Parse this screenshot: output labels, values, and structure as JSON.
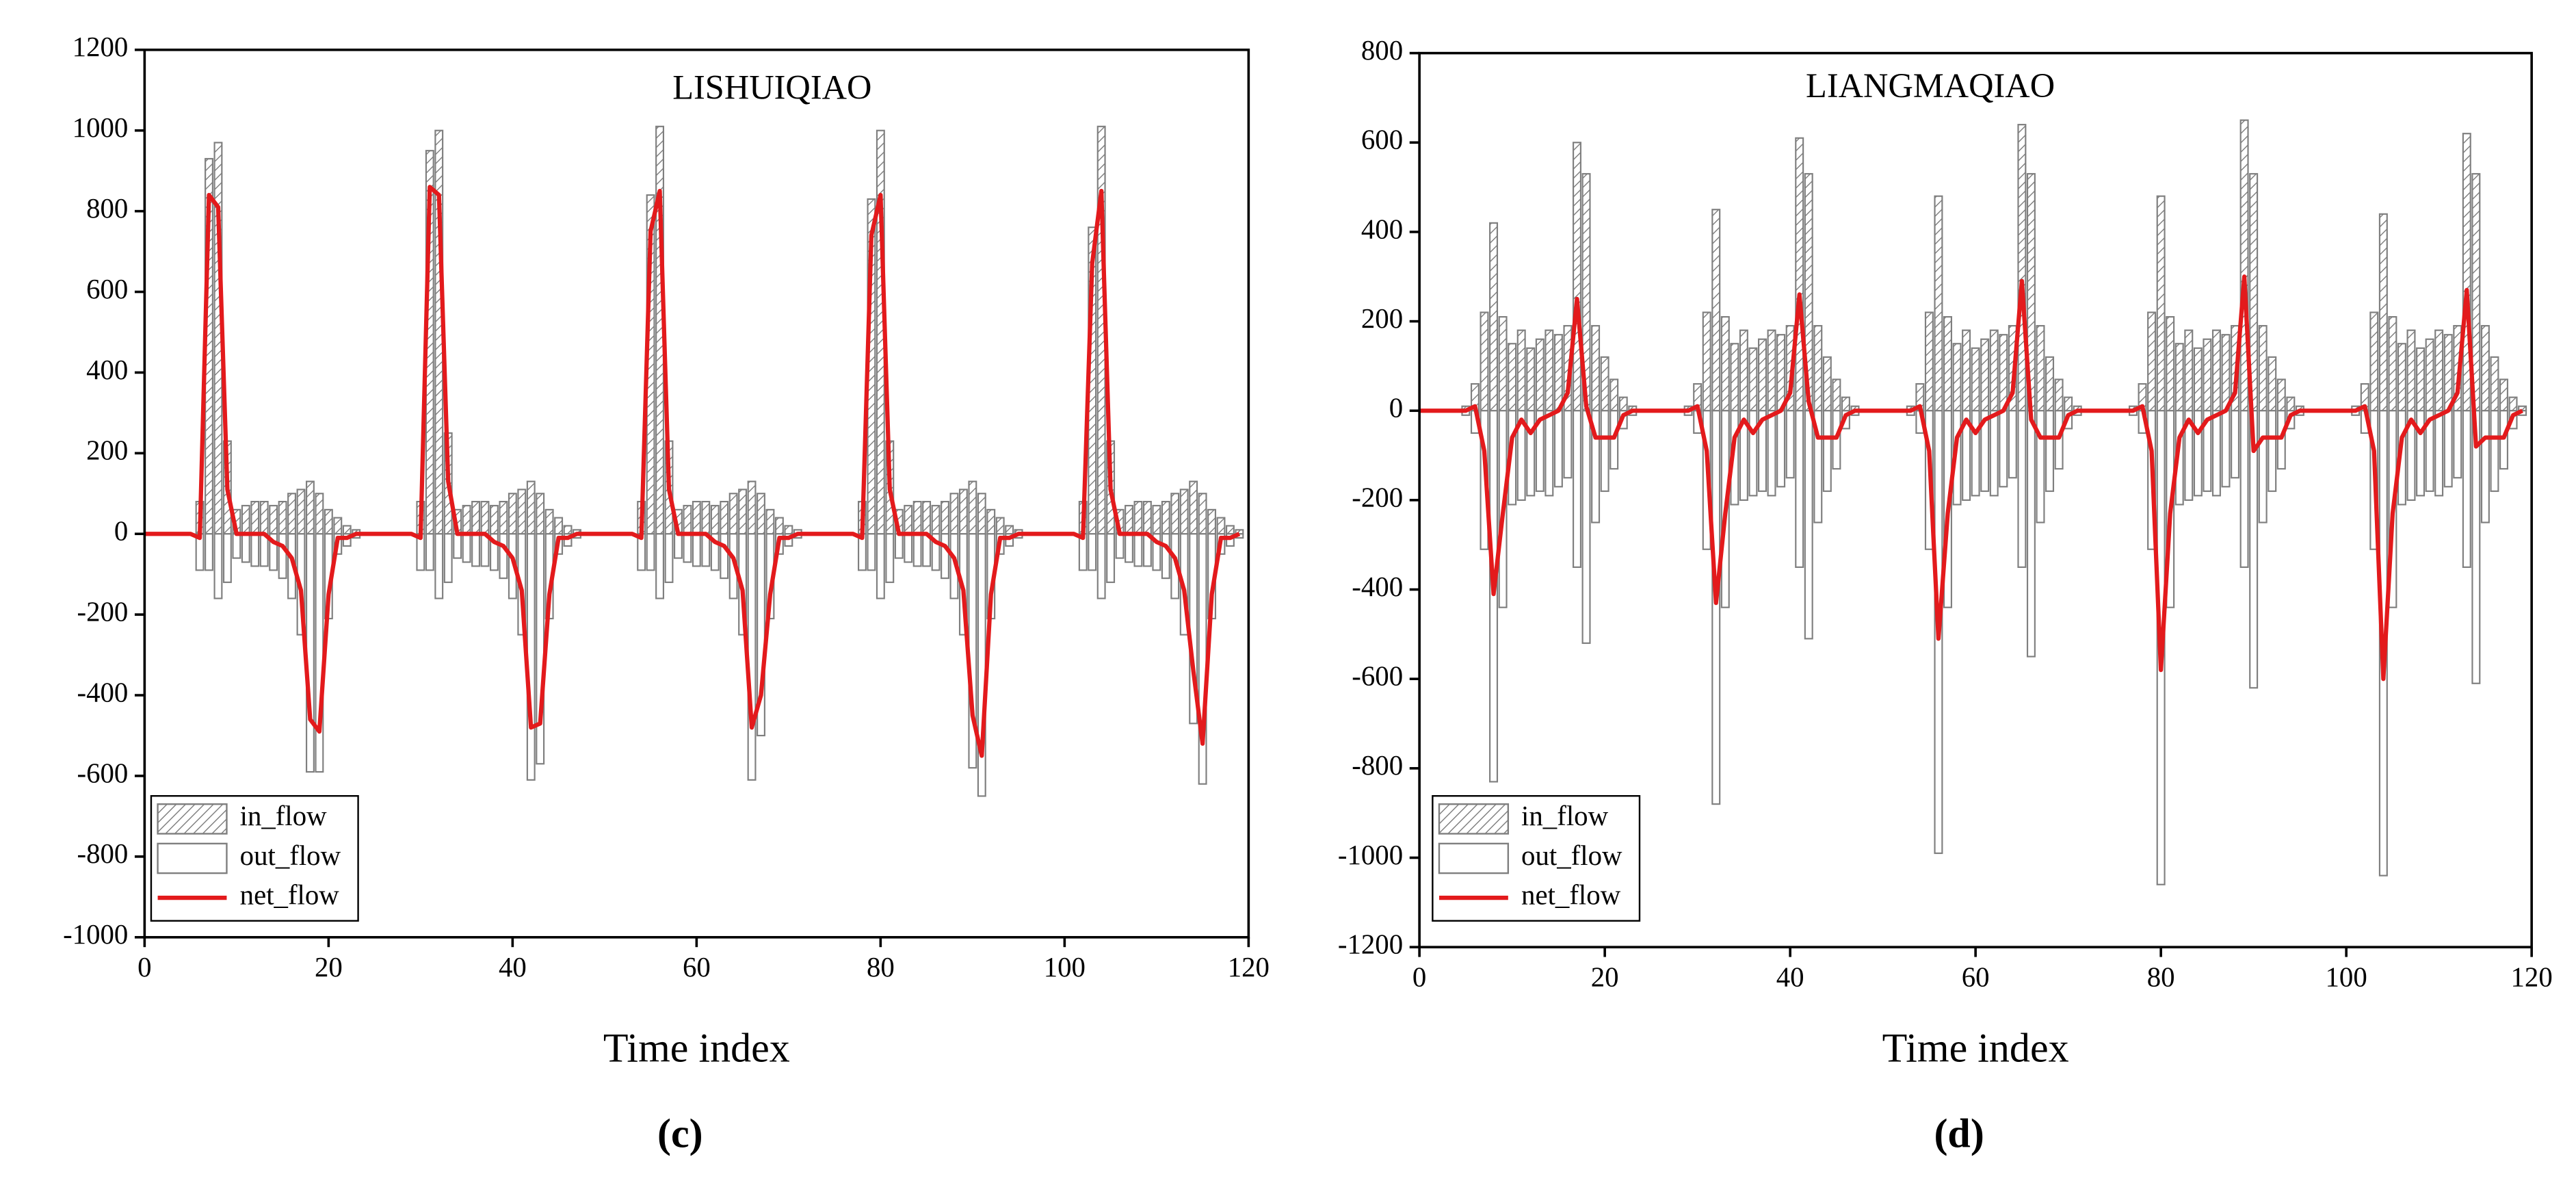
{
  "chart_data": [
    {
      "type": "bar",
      "title": "LISHUIQIAO",
      "label": "(c)",
      "x_label": "Time index",
      "xlim": [
        0,
        120
      ],
      "xticks": [
        0,
        20,
        40,
        60,
        80,
        100,
        120
      ],
      "ylim": [
        -1000,
        1200
      ],
      "yticks": [
        -1000,
        -800,
        -600,
        -400,
        -200,
        0,
        200,
        400,
        600,
        800,
        1000,
        1200
      ],
      "legend": "lower left",
      "series": [
        {
          "name": "in_flow",
          "type": "bar",
          "color": "#7f7f7f",
          "hatch": true,
          "values": [
            0,
            0,
            0,
            0,
            0,
            0,
            80,
            930,
            970,
            230,
            60,
            70,
            80,
            80,
            70,
            80,
            100,
            110,
            130,
            100,
            60,
            40,
            20,
            10,
            0,
            0,
            0,
            0,
            0,
            0,
            80,
            950,
            1000,
            250,
            60,
            70,
            80,
            80,
            70,
            80,
            100,
            110,
            130,
            100,
            60,
            40,
            20,
            10,
            0,
            0,
            0,
            0,
            0,
            0,
            80,
            840,
            1010,
            230,
            60,
            70,
            80,
            80,
            70,
            80,
            100,
            110,
            130,
            100,
            60,
            40,
            20,
            10,
            0,
            0,
            0,
            0,
            0,
            0,
            80,
            830,
            1000,
            230,
            60,
            70,
            80,
            80,
            70,
            80,
            100,
            110,
            130,
            100,
            60,
            40,
            20,
            10,
            0,
            0,
            0,
            0,
            0,
            0,
            80,
            760,
            1010,
            230,
            60,
            70,
            80,
            80,
            70,
            80,
            100,
            110,
            130,
            100,
            60,
            40,
            20,
            10
          ]
        },
        {
          "name": "out_flow",
          "type": "bar",
          "color": "#7f7f7f",
          "hatch": false,
          "values": [
            0,
            0,
            0,
            0,
            0,
            0,
            -90,
            -90,
            -160,
            -120,
            -60,
            -70,
            -80,
            -80,
            -90,
            -110,
            -160,
            -250,
            -590,
            -590,
            -210,
            -50,
            -30,
            -10,
            0,
            0,
            0,
            0,
            0,
            0,
            -90,
            -90,
            -160,
            -120,
            -60,
            -70,
            -80,
            -80,
            -90,
            -110,
            -160,
            -250,
            -610,
            -570,
            -210,
            -50,
            -30,
            -10,
            0,
            0,
            0,
            0,
            0,
            0,
            -90,
            -90,
            -160,
            -120,
            -60,
            -70,
            -80,
            -80,
            -90,
            -110,
            -160,
            -250,
            -610,
            -500,
            -210,
            -50,
            -30,
            -10,
            0,
            0,
            0,
            0,
            0,
            0,
            -90,
            -90,
            -160,
            -120,
            -60,
            -70,
            -80,
            -80,
            -90,
            -110,
            -160,
            -250,
            -580,
            -650,
            -210,
            -50,
            -30,
            -10,
            0,
            0,
            0,
            0,
            0,
            0,
            -90,
            -90,
            -160,
            -120,
            -60,
            -70,
            -80,
            -80,
            -90,
            -110,
            -160,
            -250,
            -470,
            -620,
            -210,
            -50,
            -30,
            -10
          ]
        },
        {
          "name": "net_flow",
          "type": "line",
          "color": "#e31a1c",
          "values": [
            0,
            0,
            0,
            0,
            0,
            0,
            -10,
            840,
            810,
            110,
            0,
            0,
            0,
            0,
            -20,
            -30,
            -60,
            -140,
            -460,
            -490,
            -150,
            -10,
            -10,
            0,
            0,
            0,
            0,
            0,
            0,
            0,
            -10,
            860,
            840,
            130,
            0,
            0,
            0,
            0,
            -20,
            -30,
            -60,
            -140,
            -480,
            -470,
            -150,
            -10,
            -10,
            0,
            0,
            0,
            0,
            0,
            0,
            0,
            -10,
            750,
            850,
            110,
            0,
            0,
            0,
            0,
            -20,
            -30,
            -60,
            -140,
            -480,
            -400,
            -150,
            -10,
            -10,
            0,
            0,
            0,
            0,
            0,
            0,
            0,
            -10,
            740,
            840,
            110,
            0,
            0,
            0,
            0,
            -20,
            -30,
            -60,
            -140,
            -450,
            -550,
            -150,
            -10,
            -10,
            0,
            0,
            0,
            0,
            0,
            0,
            0,
            -10,
            670,
            850,
            110,
            0,
            0,
            0,
            0,
            -20,
            -30,
            -60,
            -140,
            -340,
            -520,
            -150,
            -10,
            -10,
            0
          ]
        }
      ]
    },
    {
      "type": "bar",
      "title": "LIANGMAQIAO",
      "label": "(d)",
      "x_label": "Time index",
      "xlim": [
        0,
        120
      ],
      "xticks": [
        0,
        20,
        40,
        60,
        80,
        100,
        120
      ],
      "ylim": [
        -1200,
        800
      ],
      "yticks": [
        -1200,
        -1000,
        -800,
        -600,
        -400,
        -200,
        0,
        200,
        400,
        600,
        800
      ],
      "legend": "lower left",
      "series": [
        {
          "name": "in_flow",
          "type": "bar",
          "color": "#7f7f7f",
          "hatch": true,
          "values": [
            0,
            0,
            0,
            0,
            0,
            10,
            60,
            220,
            420,
            210,
            150,
            180,
            140,
            160,
            180,
            170,
            190,
            600,
            530,
            190,
            120,
            70,
            30,
            10,
            0,
            0,
            0,
            0,
            0,
            10,
            60,
            220,
            450,
            210,
            150,
            180,
            140,
            160,
            180,
            170,
            190,
            610,
            530,
            190,
            120,
            70,
            30,
            10,
            0,
            0,
            0,
            0,
            0,
            10,
            60,
            220,
            480,
            210,
            150,
            180,
            140,
            160,
            180,
            170,
            190,
            640,
            530,
            190,
            120,
            70,
            30,
            10,
            0,
            0,
            0,
            0,
            0,
            10,
            60,
            220,
            480,
            210,
            150,
            180,
            140,
            160,
            180,
            170,
            190,
            650,
            530,
            190,
            120,
            70,
            30,
            10,
            0,
            0,
            0,
            0,
            0,
            10,
            60,
            220,
            440,
            210,
            150,
            180,
            140,
            160,
            180,
            170,
            190,
            620,
            530,
            190,
            120,
            70,
            30,
            10
          ]
        },
        {
          "name": "out_flow",
          "type": "bar",
          "color": "#7f7f7f",
          "hatch": false,
          "values": [
            0,
            0,
            0,
            0,
            0,
            -10,
            -50,
            -310,
            -830,
            -440,
            -210,
            -200,
            -190,
            -180,
            -190,
            -170,
            -150,
            -350,
            -520,
            -250,
            -180,
            -130,
            -40,
            -10,
            0,
            0,
            0,
            0,
            0,
            -10,
            -50,
            -310,
            -880,
            -440,
            -210,
            -200,
            -190,
            -180,
            -190,
            -170,
            -150,
            -350,
            -510,
            -250,
            -180,
            -130,
            -40,
            -10,
            0,
            0,
            0,
            0,
            0,
            -10,
            -50,
            -310,
            -990,
            -440,
            -210,
            -200,
            -190,
            -180,
            -190,
            -170,
            -150,
            -350,
            -550,
            -250,
            -180,
            -130,
            -40,
            -10,
            0,
            0,
            0,
            0,
            0,
            -10,
            -50,
            -310,
            -1060,
            -440,
            -210,
            -200,
            -190,
            -180,
            -190,
            -170,
            -150,
            -350,
            -620,
            -250,
            -180,
            -130,
            -40,
            -10,
            0,
            0,
            0,
            0,
            0,
            -10,
            -50,
            -310,
            -1040,
            -440,
            -210,
            -200,
            -190,
            -180,
            -190,
            -170,
            -150,
            -350,
            -610,
            -250,
            -180,
            -130,
            -40,
            -10
          ]
        },
        {
          "name": "net_flow",
          "type": "line",
          "color": "#e31a1c",
          "values": [
            0,
            0,
            0,
            0,
            0,
            0,
            10,
            -90,
            -410,
            -230,
            -60,
            -20,
            -50,
            -20,
            -10,
            0,
            40,
            250,
            10,
            -60,
            -60,
            -60,
            -10,
            0,
            0,
            0,
            0,
            0,
            0,
            0,
            10,
            -90,
            -430,
            -230,
            -60,
            -20,
            -50,
            -20,
            -10,
            0,
            40,
            260,
            20,
            -60,
            -60,
            -60,
            -10,
            0,
            0,
            0,
            0,
            0,
            0,
            0,
            10,
            -90,
            -510,
            -230,
            -60,
            -20,
            -50,
            -20,
            -10,
            0,
            40,
            290,
            -20,
            -60,
            -60,
            -60,
            -10,
            0,
            0,
            0,
            0,
            0,
            0,
            0,
            10,
            -90,
            -580,
            -230,
            -60,
            -20,
            -50,
            -20,
            -10,
            0,
            40,
            300,
            -90,
            -60,
            -60,
            -60,
            -10,
            0,
            0,
            0,
            0,
            0,
            0,
            0,
            10,
            -90,
            -600,
            -230,
            -60,
            -20,
            -50,
            -20,
            -10,
            0,
            40,
            270,
            -80,
            -60,
            -60,
            -60,
            -10,
            0
          ]
        }
      ]
    }
  ]
}
